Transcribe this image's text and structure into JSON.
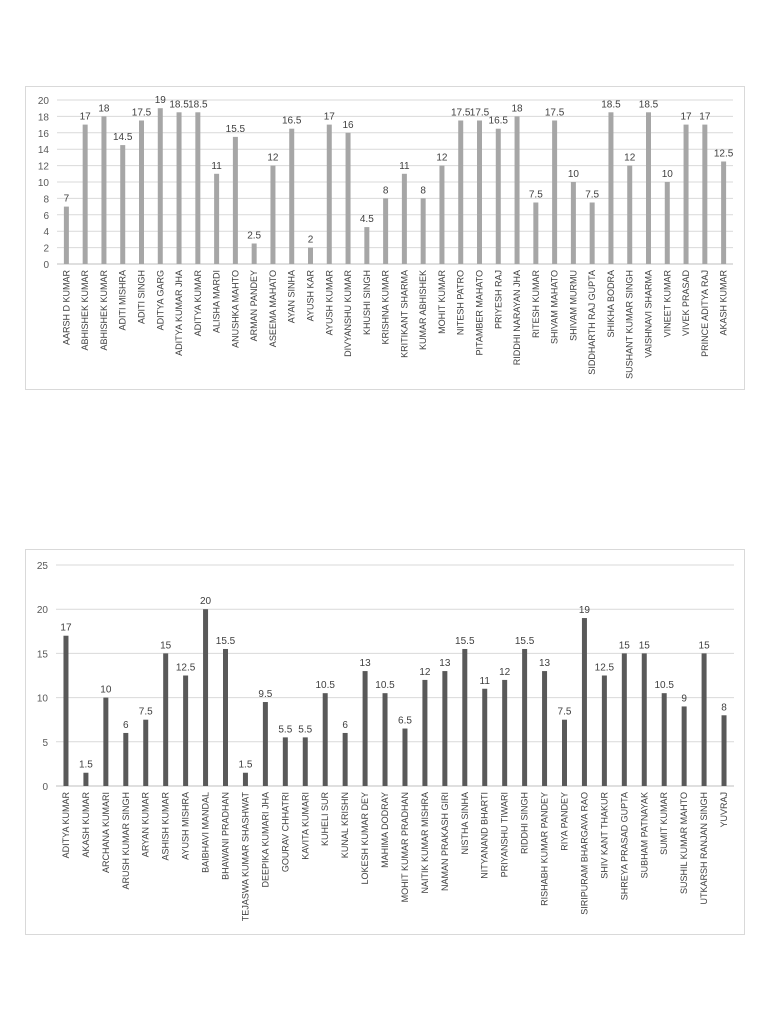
{
  "chart_data": [
    {
      "type": "bar",
      "categories": [
        "AARSH D KUMAR",
        "ABHISHEK KUMAR",
        "ABHISHEK KUMAR",
        "ADITI MISHRA",
        "ADITI SINGH",
        "ADITYA GARG",
        "ADITYA KUMAR JHA",
        "ADITYA KUMAR",
        "ALISHA MARDI",
        "ANUSHKA MAHTO",
        "ARMAN PANDEY",
        "ASEEMA MAHATO",
        "AYAN SINHA",
        "AYUSH KAR",
        "AYUSH KUMAR",
        "DIVYANSHU KUMAR",
        "KHUSHI SINGH",
        "KRISHNA KUMAR",
        "KRITIKANT SHARMA",
        "KUMAR ABHISHEK",
        "MOHIT KUMAR",
        "NITESH PATRO",
        "PITAMBER MAHATO",
        "PRIYESH RAJ",
        "RIDDHI NARAYAN JHA",
        "RITESH KUMAR",
        "SHIVAM MAHATO",
        "SHIVAM MURMU",
        "SIDDHARTH RAJ GUPTA",
        "SHIKHA BODRA",
        "SUSHANT KUMAR SINGH",
        "VAISHNAVI SHARMA",
        "VINEET KUMAR",
        "VIVEK PRASAD",
        "PRINCE ADITYA RAJ",
        "AKASH KUMAR"
      ],
      "values": [
        7,
        17,
        18,
        14.5,
        17.5,
        19,
        18.5,
        18.5,
        11,
        15.5,
        2.5,
        12,
        16.5,
        2,
        17,
        16,
        4.5,
        8,
        11,
        8,
        12,
        17.5,
        17.5,
        16.5,
        18,
        7.5,
        17.5,
        10,
        7.5,
        18.5,
        12,
        18.5,
        10,
        17,
        17,
        12.5
      ],
      "yticks": [
        "0",
        "2",
        "4",
        "6",
        "8",
        "10",
        "12",
        "14",
        "16",
        "18",
        "20"
      ],
      "ylim": [
        0,
        20
      ],
      "grid": true,
      "bar_color": "#a6a6a6"
    },
    {
      "type": "bar",
      "categories": [
        "ADITYA KUMAR",
        "AKASH KUMAR",
        "ARCHANA KUMARI",
        "ARUSH KUMAR SINGH",
        "ARYAN KUMAR",
        "ASHISH KUMAR",
        "AYUSH MISHRA",
        "BAIBHAVI MANDAL",
        "BHAWANI PRADHAN",
        "TEJASWA KUMAR SHASHWAT",
        "DEEPIKA KUMARI JHA",
        "GOURAV CHHATRI",
        "KAVITA KUMARI",
        "KUHELI SUR",
        "KUNAL KRISHN",
        "LOKESH KUMAR DEY",
        "MAHIMA DODRAY",
        "MOHIT KUMAR PRADHAN",
        "NAITIK KUMAR MISHRA",
        "NAMAN PRAKASH GIRI",
        "NISTHA SINHA",
        "NITYANAND BHARTI",
        "PRIYANSHU TIWARI",
        "RIDDHI SINGH",
        "RISHABH KUMAR PANDEY",
        "RIYA PANDEY",
        "SIRIPURAM BHARGAVA RAO",
        "SHIV KANT THAKUR",
        "SHREYA PRASAD GUPTA",
        "SUBHAM PATNAYAK",
        "SUMIT KUMAR",
        "SUSHIL KUMAR MAHTO",
        "UTKARSH RANJAN SINGH",
        "YUVRAJ"
      ],
      "values": [
        17,
        1.5,
        10,
        6,
        7.5,
        15,
        12.5,
        20,
        15.5,
        1.5,
        9.5,
        5.5,
        5.5,
        10.5,
        6,
        13,
        10.5,
        6.5,
        12,
        13,
        15.5,
        11,
        12,
        15.5,
        13,
        7.5,
        19,
        12.5,
        15,
        15,
        10.5,
        9,
        15,
        8
      ],
      "yticks": [
        "0",
        "5",
        "10",
        "15",
        "20",
        "25"
      ],
      "ylim": [
        0,
        25
      ],
      "grid": true,
      "bar_color": "#595959"
    }
  ]
}
